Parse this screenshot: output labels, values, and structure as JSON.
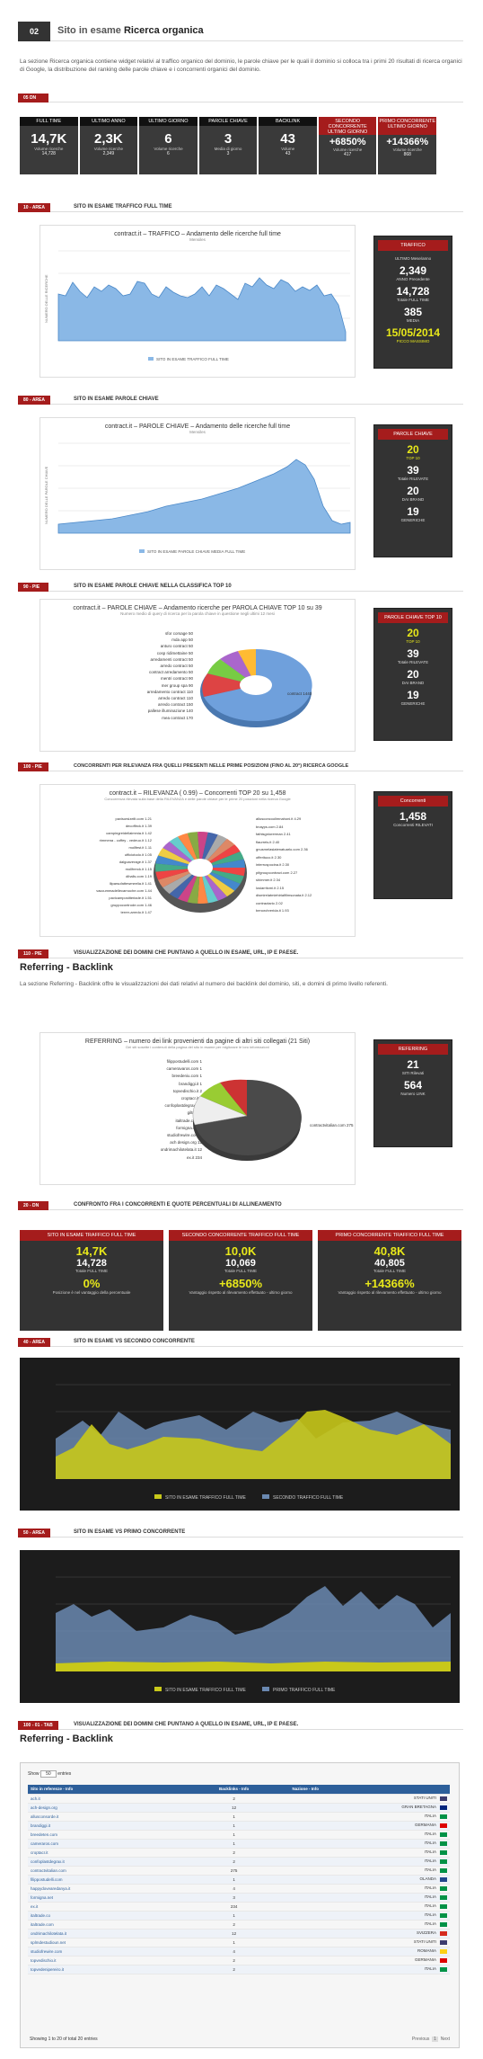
{
  "header": {
    "num": "02",
    "title_pre": "Sito in esame",
    "title_bold": "Ricerca organica"
  },
  "intro": "La sezione Ricerca organica contiene widget relativi al traffico organico del dominio, le parole chiave per le quali il dominio si colloca tra i primi 20 risultati di ricerca organici di Google, la distribuzione del ranking delle parole chiave e i concorrenti organici del dominio.",
  "sec_kpi": {
    "tag": "05 DN"
  },
  "kpis": [
    {
      "h": "FULL TIME",
      "v": "14,7K",
      "s": "Volume ricerche",
      "s2": "14,728"
    },
    {
      "h": "ULTIMO ANNO",
      "v": "2,3K",
      "s": "Volume ricerche",
      "s2": "2,349"
    },
    {
      "h": "ULTIMO GIORNO",
      "v": "6",
      "s": "Volume ricerche",
      "s2": "6"
    },
    {
      "h": "PAROLE CHIAVE",
      "v": "3",
      "s": "Media di giorno",
      "s2": "3"
    },
    {
      "h": "BACKLINK",
      "v": "43",
      "s": "Volume",
      "s2": "43"
    },
    {
      "h": "SECONDO CONCORRENTE ULTIMO GIORNO",
      "v": "+6850%",
      "s": "Volume ricerche",
      "s2": "417",
      "red": true
    },
    {
      "h": "PRIMO CONCORRENTE ULTIMO GIORNO",
      "v": "+14366%",
      "s": "Volume ricerche",
      "s2": "868",
      "red": true
    }
  ],
  "s1": {
    "tag": "10 - AREA",
    "title": "SITO IN ESAME TRAFFICO FULL TIME",
    "chart_title": "contract.it – TRAFFICO – Andamento delle ricerche full time",
    "chart_sub": "Mensiles",
    "legend": "SITO IN ESAME TRAFFICO FULL TIME",
    "ylabel": "NUMERO DELLE RICERCHE"
  },
  "side1": {
    "h": "TRAFFICO",
    "rows": [
      {
        "v": "2,349",
        "l": "ANNO Precedente"
      },
      {
        "v": "14,728",
        "l": "Totale FULL TIME"
      },
      {
        "v": "385",
        "l": "MEDIA"
      },
      {
        "v": "15/05/2014",
        "l": "PICCO MASSIMO",
        "yel": true
      }
    ],
    "top": "ULTIMO Mese/anno"
  },
  "s2": {
    "tag": "80 - AREA",
    "title": "SITO IN ESAME PAROLE CHIAVE",
    "chart_title": "contract.it – PAROLE CHIAVE – Andamento delle ricerche full time",
    "chart_sub": "Mensiles",
    "legend": "SITO IN ESAME PAROLE CHIAVE MEDIA FULL TIME",
    "ylabel": "NUMERO DELLE PAROLE CHIAVE"
  },
  "side2": {
    "h": "PAROLE CHIAVE",
    "rows": [
      {
        "v": "20",
        "l": "TOP 10",
        "yel": true
      },
      {
        "v": "39",
        "l": "Totale RILEVATE"
      },
      {
        "v": "20",
        "l": "DAI BRAND"
      },
      {
        "v": "19",
        "l": "GENERICHE"
      }
    ]
  },
  "s3": {
    "tag": "90 - PIE",
    "title": "SITO IN ESAME PAROLE CHIAVE NELLA CLASSIFICA TOP 10",
    "chart_title": "contract.it – PAROLE CHIAVE – Andamento ricerche per PAROLA CHIAVE TOP 10 su 39",
    "chart_sub": "Numero medio di query di ricerca per la parola chiave in questione negli ultimi 12 mesi"
  },
  "pie1_labels": [
    "sfor corsage 50",
    "mda app 50",
    "anturo contract 50",
    "cosp ridimettaine 50",
    "arredamenti contract 50",
    "arredo contract 50",
    "contract arredamento 50",
    "mentri contract 90",
    "mer group spa 90",
    "arredamento contract 110",
    "arredo contract 110",
    "arredo contract 150",
    "pallese illuminazione 140",
    "mea contract 170",
    "contract 1440"
  ],
  "side3": {
    "h": "PAROLE CHIAVE TOP 10",
    "rows": [
      {
        "v": "20",
        "l": "TOP 10",
        "yel": true
      },
      {
        "v": "39",
        "l": "Totale RILEVATE"
      },
      {
        "v": "20",
        "l": "DAI BRAND"
      },
      {
        "v": "19",
        "l": "GENERICHE"
      }
    ]
  },
  "s4": {
    "tag": "100 - PIE",
    "title": "CONCORRENTI PER RILEVANZA FRA QUELLI PRESENTI NELLE PRIME POSIZIONI (FINO AL 20°) RICERCA GOOGLE",
    "chart_title": "contract.it – RILEVANZA ( 0.99) – Concorrenti TOP 20 su 1,458",
    "chart_sub": "Concorrenza rilevata sulla base della RILEVANZA e delle parole chiave per le prime 20 posizioni nella ricerca Google"
  },
  "pie2_left": [
    "pavisorsizeilt.com 1.21",
    "decoffirck.it 1.39",
    "campingreidellaimmia.it 1.42",
    "rimmena - coffey - vedeuo.it 1.12",
    "mollfest.it 1.11",
    "ufficiotodo.it 1.05",
    "dalgoaverage.it 1.37",
    "mollfrerck.it 1.15",
    "dihalls.com 1.19",
    "lliparsufattewmeelia.it 1.41",
    "vaccummadellecarnoche.com 1.44",
    "pavicampositteriade.it 1.51",
    "gruppocontrode.com 1.46",
    "terrer-arredo.it 1.47"
  ],
  "pie2_right": [
    "allusconcoolimnahoni.it 4.29",
    "bnayps.com 2.84",
    "fathisgniorerman 2.41",
    "flaurreis.it 2.40",
    "gnusmelasiatenatuarlo.com 2.36",
    "offerituco.it 2.30",
    "interruspocina.it 2.30",
    "pifgroupcontract.com 2.27",
    "shimmer.it 2.34",
    "losiarritcmi.it 2.15",
    "dismirelatmiehirialfilmsonata.it 2.12",
    "contractario 2.02",
    "benorchrerida.it 1.93"
  ],
  "side4": {
    "h": "Concorrenti",
    "v": "1,458",
    "l": "Concorrenti RILEVATI"
  },
  "s5": {
    "tag": "110 - PIE",
    "title": "VISUALIZZAZIONE DEI DOMINI CHE PUNTANO A QUELLO IN ESAME, URL, IP E PAESE."
  },
  "ref1": {
    "title": "Referring - Backlink",
    "text": "La sezione Referring - Backlink offre le visualizzazioni dei dati relativi al numero dei backlink del dominio, siti, e domini di primo livello referenti.",
    "chart_title": "REFERRING – numero dei link provenienti da pagine di altri siti collegati (21 Siti)",
    "chart_sub": "Dei siti sosette i contenuti della pagina del sito in esame per migliorare le loro informazioni"
  },
  "pie3_labels": [
    "filippostudelli.com 1",
    "cameravaros.com 1",
    "breedeniu.com 1",
    "brandiggi.it 1",
    "topvedischio.it 2",
    "croptacr.it 2",
    "confoplastdegrax.it 2",
    "giltry.it 2",
    "italtrade.com 2",
    "formigna.net 3",
    "studiofrewire.com 4",
    "ach design.org 12",
    "ondrimachilotelata.it 12",
    "ex.it 234"
  ],
  "pie3_right": "contractvitalian.com 275",
  "side5": {
    "h": "REFERRING",
    "rows": [
      {
        "v": "21",
        "l": "SITI Rilevati"
      },
      {
        "v": "564",
        "l": "Numero LINK"
      }
    ]
  },
  "s6": {
    "tag": "20 - DN",
    "title": "CONFRONTO FRA I CONCORRENTI E QUOTE PERCENTUALI DI ALLINEAMENTO"
  },
  "cmp": [
    {
      "h": "SITO IN ESAME TRAFFICO FULL TIME",
      "a": "14,7K",
      "b": "14,728",
      "bl": "Totale FULL TIME",
      "d": "0%",
      "dl": "Posizione è nel vantaggio della percentuale"
    },
    {
      "h": "SECONDO CONCORRENTE TRAFFICO FULL TIME",
      "a": "10,0K",
      "b": "10,069",
      "bl": "Totale FULL TIME",
      "d": "+6850%",
      "dl": "Vantaggio rispetto al rilevamento effettuato - ultimo giorno"
    },
    {
      "h": "PRIMO CONCORRENTE TRAFFICO FULL TIME",
      "a": "40,8K",
      "b": "40,805",
      "bl": "Totale FULL TIME",
      "d": "+14366%",
      "dl": "Vantaggio rispetto al rilevamento effettuato - ultimo giorno"
    }
  ],
  "s7": {
    "tag": "40 - AREA",
    "title": "SITO IN ESAME VS SECONDO CONCORRENTE",
    "leg1": "SITO IN ESAME TRAFFICO FULL TIME",
    "leg2": "SECONDO TRAFFICO FULL TIME"
  },
  "s8": {
    "tag": "50 - AREA",
    "title": "SITO IN ESAME VS PRIMO CONCORRENTE",
    "leg1": "SITO IN ESAME TRAFFICO FULL TIME",
    "leg2": "PRIMO TRAFFICO FULL TIME"
  },
  "s9": {
    "tag": "100 - 01 - TAB",
    "title": "VISUALIZZAZIONE DEI DOMINI CHE PUNTANO A QUELLO IN ESAME, URL, IP E PAESE."
  },
  "ref2": {
    "title": "Referring - Backlink"
  },
  "table": {
    "show": "Show",
    "entries_val": "50",
    "entries": "entries",
    "cols": [
      "Sito in referenze - Info",
      "Backlinks - Info",
      "Nazione - Info"
    ],
    "rows": [
      [
        "ach.it",
        "2",
        "STATI UNITI",
        "#3c3b6e"
      ],
      [
        "ach-design.org",
        "12",
        "GRAN BRETAGNA",
        "#00247d"
      ],
      [
        "allusconsorde.it",
        "1",
        "ITALIA",
        "#009246"
      ],
      [
        "brandiggi.it",
        "1",
        "GERMANIA",
        "#dd0000"
      ],
      [
        "breedeten.com",
        "1",
        "ITALIA",
        "#009246"
      ],
      [
        "cameraros.com",
        "1",
        "ITALIA",
        "#009246"
      ],
      [
        "croptacr.it",
        "2",
        "ITALIA",
        "#009246"
      ],
      [
        "confoplastdegrax.it",
        "2",
        "ITALIA",
        "#009246"
      ],
      [
        "contractvitalian.com",
        "275",
        "ITALIA",
        "#009246"
      ],
      [
        "filippostudelli.com",
        "1",
        "OLANDA",
        "#21468b"
      ],
      [
        "happydovearedanya.it",
        "4",
        "ITALIA",
        "#009246"
      ],
      [
        "formigna.net",
        "3",
        "ITALIA",
        "#009246"
      ],
      [
        "ex.it",
        "234",
        "ITALIA",
        "#009246"
      ],
      [
        "italtrade.co",
        "1",
        "ITALIA",
        "#009246"
      ],
      [
        "italtrade.com",
        "2",
        "ITALIA",
        "#009246"
      ],
      [
        "ondrimachilotelata.it",
        "12",
        "SVIZZERA",
        "#d52b1e"
      ],
      [
        "splmdestudioun.net",
        "1",
        "STATI UNITI",
        "#3c3b6e"
      ],
      [
        "studiofrewire.com",
        "4",
        "ROMANIA",
        "#fcd116"
      ],
      [
        "topvedischio.it",
        "2",
        "GERMANIA",
        "#dd0000"
      ],
      [
        "topvedenipereiro.it",
        "2",
        "ITALIA",
        "#009246"
      ]
    ],
    "footer": "Showing 1 to 20 of total 20 entries",
    "prev": "Previous",
    "next": "Next"
  }
}
